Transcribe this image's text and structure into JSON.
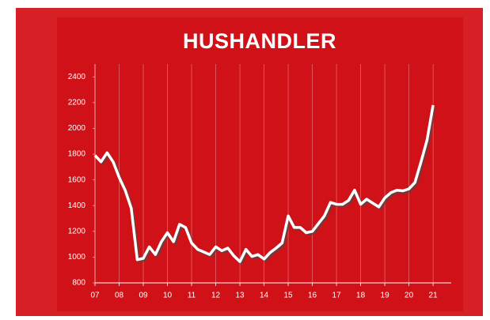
{
  "chart_data": {
    "type": "line",
    "title": "HUSHANDLER",
    "x": [
      7,
      7.25,
      7.5,
      7.75,
      8,
      8.25,
      8.5,
      8.75,
      9,
      9.25,
      9.5,
      9.75,
      10,
      10.25,
      10.5,
      10.75,
      11,
      11.25,
      11.5,
      11.75,
      12,
      12.25,
      12.5,
      12.75,
      13,
      13.25,
      13.5,
      13.75,
      14,
      14.25,
      14.5,
      14.75,
      15,
      15.25,
      15.5,
      15.75,
      16,
      16.25,
      16.5,
      16.75,
      17,
      17.25,
      17.5,
      17.75,
      18,
      18.25,
      18.5,
      18.75,
      19,
      19.25,
      19.5,
      19.75,
      20,
      20.25,
      20.5,
      20.75,
      21
    ],
    "series": [
      {
        "name": "Hushandler",
        "color": "#ffffff",
        "values": [
          1790,
          1740,
          1810,
          1740,
          1620,
          1520,
          1380,
          980,
          990,
          1080,
          1020,
          1120,
          1190,
          1120,
          1255,
          1230,
          1110,
          1060,
          1040,
          1020,
          1080,
          1050,
          1070,
          1010,
          965,
          1060,
          1005,
          1020,
          985,
          1035,
          1070,
          1110,
          1320,
          1230,
          1230,
          1190,
          1200,
          1260,
          1320,
          1425,
          1410,
          1410,
          1440,
          1520,
          1410,
          1450,
          1420,
          1390,
          1460,
          1500,
          1520,
          1515,
          1530,
          1580,
          1740,
          1910,
          2180
        ]
      }
    ],
    "xlim": [
      7,
      21.75
    ],
    "xticks": [
      {
        "value": 7,
        "label": "07"
      },
      {
        "value": 8,
        "label": "08"
      },
      {
        "value": 9,
        "label": "09"
      },
      {
        "value": 10,
        "label": "10"
      },
      {
        "value": 11,
        "label": "11"
      },
      {
        "value": 12,
        "label": "12"
      },
      {
        "value": 13,
        "label": "13"
      },
      {
        "value": 14,
        "label": "14"
      },
      {
        "value": 15,
        "label": "15"
      },
      {
        "value": 16,
        "label": "16"
      },
      {
        "value": 17,
        "label": "17"
      },
      {
        "value": 18,
        "label": "18"
      },
      {
        "value": 19,
        "label": "19"
      },
      {
        "value": 20,
        "label": "20"
      },
      {
        "value": 21,
        "label": "21"
      }
    ],
    "ylim": [
      800,
      2500
    ],
    "yticks": [
      800,
      1000,
      1200,
      1400,
      1600,
      1800,
      2000,
      2200,
      2400
    ],
    "grid": true
  }
}
